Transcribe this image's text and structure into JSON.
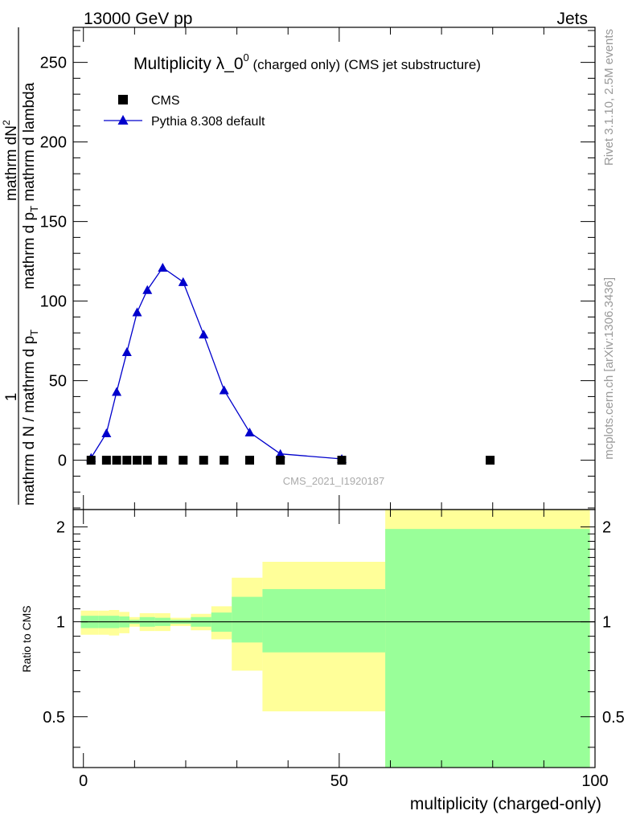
{
  "header": {
    "left": "13000 GeV pp",
    "right": "Jets",
    "side_top": "Rivet 3.1.10,  2.5M events",
    "side_bottom": "mcplots.cern.ch [arXiv:1306.3436]"
  },
  "chart_data": [
    {
      "type": "scatter",
      "title": "Multiplicity λ_0",
      "title_sup": "0",
      "title_suffix": " (charged only) (CMS jet substructure)",
      "watermark": "CMS_2021_I1920187",
      "ylabel_numerator": "mathrm dN",
      "ylabel_numerator_sup": "2",
      "ylabel_denominator": "mathrm d p",
      "ylabel_denominator_sub": "T",
      "ylabel_denominator_tail": " mathrm d lambda",
      "ylabel_fraction_numerator": "1",
      "ylabel_fraction_denominator": "mathrm d N / mathrm d p",
      "ylabel_fraction_denominator_sub": "T",
      "ylim": [
        -31,
        272
      ],
      "xlim": [
        -2,
        100
      ],
      "yticks": [
        0,
        50,
        100,
        150,
        200,
        250
      ],
      "ytick_labels": [
        "0",
        "50",
        "100",
        "150",
        "200",
        "250"
      ],
      "legend_placement": "top-left",
      "series": [
        {
          "name": "CMS",
          "marker": "square",
          "color": "#000000",
          "x": [
            1.5,
            4.5,
            6.5,
            8.5,
            10.5,
            12.5,
            15.5,
            19.5,
            23.5,
            27.5,
            32.5,
            38.5,
            50.5,
            79.5
          ],
          "y": [
            0,
            0,
            0,
            0,
            0,
            0,
            0,
            0,
            0,
            0,
            0,
            0,
            0,
            0
          ]
        },
        {
          "name": "Pythia 8.308 default",
          "marker": "triangle",
          "color": "#0000cc",
          "x": [
            1.5,
            4.5,
            6.5,
            8.5,
            10.5,
            12.5,
            15.5,
            19.5,
            23.5,
            27.5,
            32.5,
            38.5,
            50.5
          ],
          "y": [
            1.5,
            17,
            43,
            68,
            93,
            107,
            121,
            112,
            79,
            44,
            17.5,
            4,
            0.8
          ]
        }
      ]
    },
    {
      "type": "area",
      "ylabel": "Ratio to CMS",
      "xlabel": "multiplicity (charged-only)",
      "ylim": [
        0.345,
        2.27
      ],
      "xlim": [
        -2,
        100
      ],
      "xticks": [
        0,
        50,
        100
      ],
      "xtick_labels": [
        "0",
        "50",
        "100"
      ],
      "yticks": [
        0.5,
        1,
        2
      ],
      "ytick_labels": [
        "0.5",
        "1",
        "2"
      ],
      "colors": {
        "outer_band": "#ffff99",
        "inner_band": "#99ff99",
        "reference": "#000000"
      },
      "bands": [
        {
          "x0": -0.5,
          "x1": 3,
          "inner": [
            0.955,
            1.045
          ],
          "outer": [
            0.91,
            1.085
          ]
        },
        {
          "x0": 3,
          "x1": 5,
          "inner": [
            0.955,
            1.045
          ],
          "outer": [
            0.91,
            1.085
          ]
        },
        {
          "x0": 5,
          "x1": 7,
          "inner": [
            0.955,
            1.045
          ],
          "outer": [
            0.905,
            1.09
          ]
        },
        {
          "x0": 7,
          "x1": 9,
          "inner": [
            0.96,
            1.04
          ],
          "outer": [
            0.92,
            1.075
          ]
        },
        {
          "x0": 9,
          "x1": 11,
          "inner": [
            0.985,
            1.015
          ],
          "outer": [
            0.965,
            1.035
          ]
        },
        {
          "x0": 11,
          "x1": 14,
          "inner": [
            0.965,
            1.035
          ],
          "outer": [
            0.935,
            1.065
          ]
        },
        {
          "x0": 14,
          "x1": 17,
          "inner": [
            0.97,
            1.03
          ],
          "outer": [
            0.935,
            1.065
          ]
        },
        {
          "x0": 17,
          "x1": 21,
          "inner": [
            0.985,
            1.015
          ],
          "outer": [
            0.97,
            1.03
          ]
        },
        {
          "x0": 21,
          "x1": 25,
          "inner": [
            0.965,
            1.035
          ],
          "outer": [
            0.94,
            1.06
          ]
        },
        {
          "x0": 25,
          "x1": 29,
          "inner": [
            0.93,
            1.07
          ],
          "outer": [
            0.88,
            1.12
          ]
        },
        {
          "x0": 29,
          "x1": 35,
          "inner": [
            0.86,
            1.2
          ],
          "outer": [
            0.7,
            1.38
          ]
        },
        {
          "x0": 35,
          "x1": 59,
          "inner": [
            0.8,
            1.27
          ],
          "outer": [
            0.52,
            1.55
          ]
        },
        {
          "x0": 59,
          "x1": 99,
          "inner": [
            0.345,
            1.97
          ],
          "outer": [
            0.345,
            2.27
          ]
        }
      ]
    }
  ]
}
